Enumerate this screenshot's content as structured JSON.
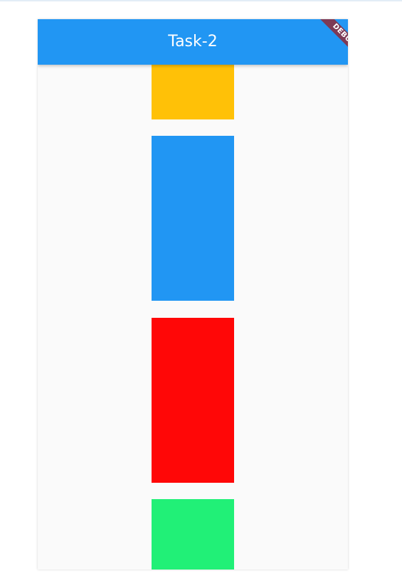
{
  "app_bar": {
    "title": "Task-2",
    "color": "#2196f3"
  },
  "debug_banner": {
    "label": "DEBUG",
    "color": "#7d3a55"
  },
  "boxes": [
    {
      "name": "amber",
      "color": "#ffc107"
    },
    {
      "name": "blue",
      "color": "#2196f3"
    },
    {
      "name": "red",
      "color": "#ff0707"
    },
    {
      "name": "green",
      "color": "#21f077"
    }
  ]
}
